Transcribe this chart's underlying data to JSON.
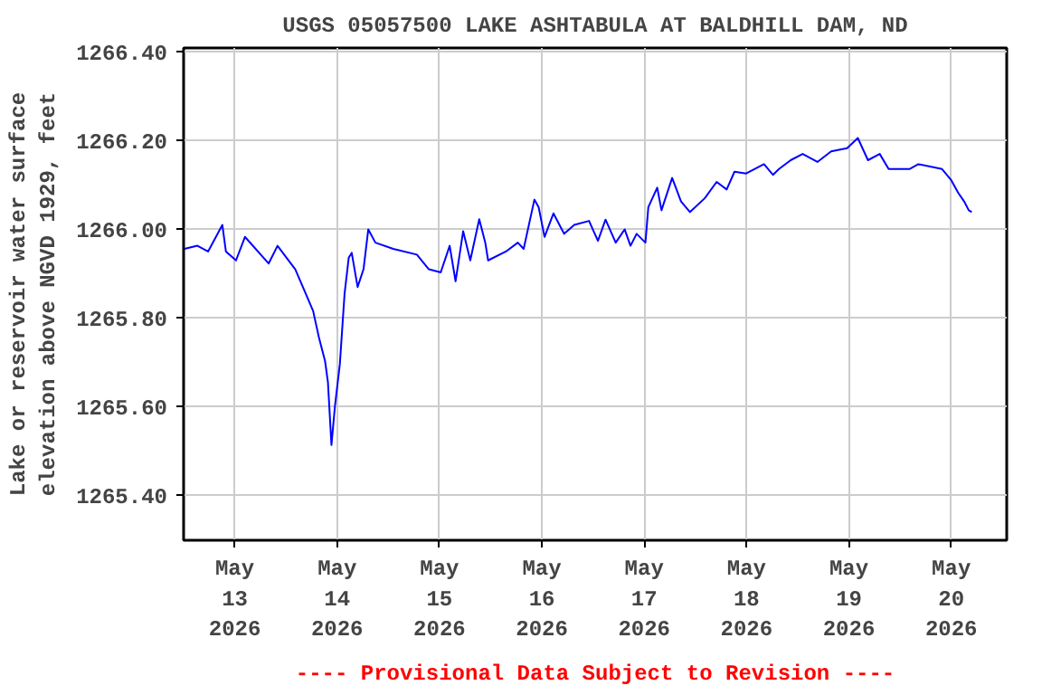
{
  "chart_data": {
    "type": "line",
    "title": "USGS 05057500 LAKE ASHTABULA AT BALDHILL DAM, ND",
    "ylabel": "Lake or reservoir water surface\nelevation above NGVD 1929, feet",
    "annotations": [
      "---- Provisional Data Subject to Revision ----"
    ],
    "xlim": [
      "2026-05-12T12:00",
      "2026-05-20T13:00"
    ],
    "xticks": [
      {
        "value": "2026-05-13T00:00",
        "label": "May\n13\n2026"
      },
      {
        "value": "2026-05-14T00:00",
        "label": "May\n14\n2026"
      },
      {
        "value": "2026-05-15T00:00",
        "label": "May\n15\n2026"
      },
      {
        "value": "2026-05-16T00:00",
        "label": "May\n16\n2026"
      },
      {
        "value": "2026-05-17T00:00",
        "label": "May\n17\n2026"
      },
      {
        "value": "2026-05-18T00:00",
        "label": "May\n18\n2026"
      },
      {
        "value": "2026-05-19T00:00",
        "label": "May\n19\n2026"
      },
      {
        "value": "2026-05-20T00:00",
        "label": "May\n20\n2026"
      }
    ],
    "ylim": [
      1265.3,
      1266.41
    ],
    "yticks": [
      {
        "value": 1265.4,
        "label": "1265.40"
      },
      {
        "value": 1265.6,
        "label": "1265.60"
      },
      {
        "value": 1265.8,
        "label": "1265.80"
      },
      {
        "value": 1266.0,
        "label": "1266.00"
      },
      {
        "value": 1266.2,
        "label": "1266.20"
      },
      {
        "value": 1266.4,
        "label": "1266.40"
      }
    ],
    "grid": true,
    "series": [
      {
        "color": "#0000ff",
        "x": [
          "2026-05-12T12:11",
          "2026-05-12T15:14",
          "2026-05-12T17:44",
          "2026-05-12T21:05",
          "2026-05-12T21:55",
          "2026-05-13T00:17",
          "2026-05-13T02:23",
          "2026-05-13T07:56",
          "2026-05-13T10:01",
          "2026-05-13T14:11",
          "2026-05-13T16:17",
          "2026-05-13T18:22",
          "2026-05-13T19:44",
          "2026-05-13T21:10",
          "2026-05-13T21:50",
          "2026-05-13T22:40",
          "2026-05-13T23:30",
          "2026-05-14T00:38",
          "2026-05-14T01:45",
          "2026-05-14T02:43",
          "2026-05-14T03:25",
          "2026-05-14T04:48",
          "2026-05-14T06:11",
          "2026-05-14T07:18",
          "2026-05-14T08:58",
          "2026-05-14T13:09",
          "2026-05-14T18:42",
          "2026-05-14T21:30",
          "2026-05-15T00:17",
          "2026-05-15T02:23",
          "2026-05-15T03:46",
          "2026-05-15T05:33",
          "2026-05-15T07:13",
          "2026-05-15T09:19",
          "2026-05-15T10:44",
          "2026-05-15T11:24",
          "2026-05-15T15:34",
          "2026-05-15T18:22",
          "2026-05-15T19:44",
          "2026-05-15T22:15",
          "2026-05-15T23:15",
          "2026-05-16T00:38",
          "2026-05-16T02:43",
          "2026-05-16T05:13",
          "2026-05-16T07:36",
          "2026-05-16T11:04",
          "2026-05-16T13:09",
          "2026-05-16T14:56",
          "2026-05-16T17:19",
          "2026-05-16T19:25",
          "2026-05-16T20:47",
          "2026-05-16T22:13",
          "2026-05-17T00:17",
          "2026-05-17T00:58",
          "2026-05-17T03:03",
          "2026-05-17T04:03",
          "2026-05-17T06:33",
          "2026-05-17T08:38",
          "2026-05-17T10:44",
          "2026-05-17T14:11",
          "2026-05-17T16:59",
          "2026-05-17T19:20",
          "2026-05-17T21:10",
          "2026-05-17T23:55",
          "2026-05-18T04:05",
          "2026-05-18T06:11",
          "2026-05-18T07:36",
          "2026-05-18T10:21",
          "2026-05-18T13:09",
          "2026-05-18T16:37",
          "2026-05-18T19:50",
          "2026-05-18T23:35",
          "2026-05-19T02:05",
          "2026-05-19T04:28",
          "2026-05-19T07:13",
          "2026-05-19T09:19",
          "2026-05-19T14:11",
          "2026-05-19T16:17",
          "2026-05-19T21:50",
          "2026-05-19T23:55",
          "2026-05-20T01:35",
          "2026-05-20T03:01",
          "2026-05-20T04:06",
          "2026-05-20T04:48"
        ],
        "values": [
          1265.957,
          1265.964,
          1265.951,
          1266.011,
          1265.951,
          1265.931,
          1265.984,
          1265.924,
          1265.964,
          1265.911,
          1265.864,
          1265.817,
          1265.757,
          1265.704,
          1265.657,
          1265.515,
          1265.604,
          1265.697,
          1265.857,
          1265.937,
          1265.948,
          1265.871,
          1265.911,
          1266.001,
          1265.971,
          1265.957,
          1265.944,
          1265.911,
          1265.904,
          1265.964,
          1265.884,
          1265.997,
          1265.931,
          1266.024,
          1265.971,
          1265.931,
          1265.951,
          1265.971,
          1265.957,
          1266.068,
          1266.051,
          1265.984,
          1266.037,
          1265.991,
          1266.011,
          1266.02,
          1265.975,
          1266.023,
          1265.971,
          1266.001,
          1265.964,
          1265.991,
          1265.971,
          1266.051,
          1266.095,
          1266.044,
          1266.117,
          1266.064,
          1266.04,
          1266.071,
          1266.108,
          1266.091,
          1266.131,
          1266.127,
          1266.148,
          1266.124,
          1266.137,
          1266.157,
          1266.171,
          1266.153,
          1266.177,
          1266.184,
          1266.207,
          1266.157,
          1266.171,
          1266.137,
          1266.137,
          1266.148,
          1266.137,
          1266.113,
          1266.084,
          1266.064,
          1266.044,
          1266.04
        ]
      }
    ]
  }
}
